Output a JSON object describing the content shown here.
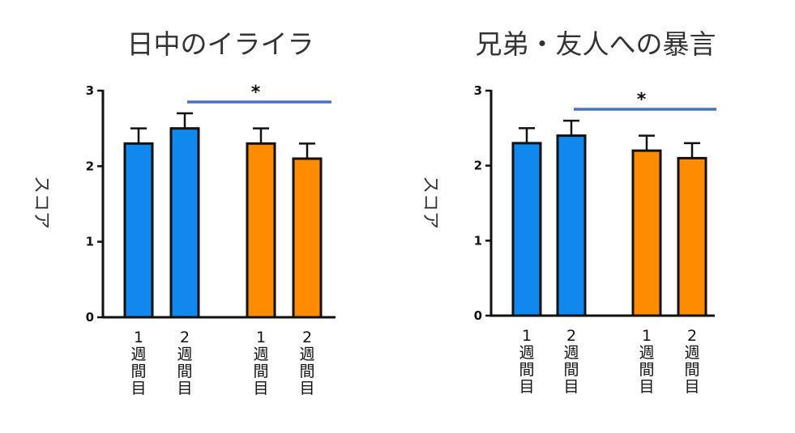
{
  "chart_data": [
    {
      "type": "bar",
      "title": "日中のイライラ",
      "ylabel": "スコア",
      "ylim": [
        0,
        3
      ],
      "yticks": [
        "0",
        "1",
        "2",
        "3"
      ],
      "categories": [
        "1週間目",
        "2週間目",
        "1週間目",
        "2週間目"
      ],
      "values": [
        2.3,
        2.5,
        2.3,
        2.1
      ],
      "errors": [
        0.2,
        0.2,
        0.2,
        0.2
      ],
      "bar_colors": [
        "#1188ee",
        "#1188ee",
        "#ff8c00",
        "#ff8c00"
      ],
      "significance": {
        "from": 1,
        "to": 3,
        "label": "*",
        "color": "#4a72c4"
      }
    },
    {
      "type": "bar",
      "title": "兄弟・友人への暴言",
      "ylabel": "スコア",
      "ylim": [
        0,
        3
      ],
      "yticks": [
        "0",
        "1",
        "2",
        "3"
      ],
      "categories": [
        "1週間目",
        "2週間目",
        "1週間目",
        "2週間目"
      ],
      "values": [
        2.3,
        2.4,
        2.2,
        2.1
      ],
      "errors": [
        0.2,
        0.2,
        0.2,
        0.2
      ],
      "bar_colors": [
        "#1188ee",
        "#1188ee",
        "#ff8c00",
        "#ff8c00"
      ],
      "significance": {
        "from": 1,
        "to": 3,
        "label": "*",
        "color": "#4a72c4"
      }
    }
  ]
}
